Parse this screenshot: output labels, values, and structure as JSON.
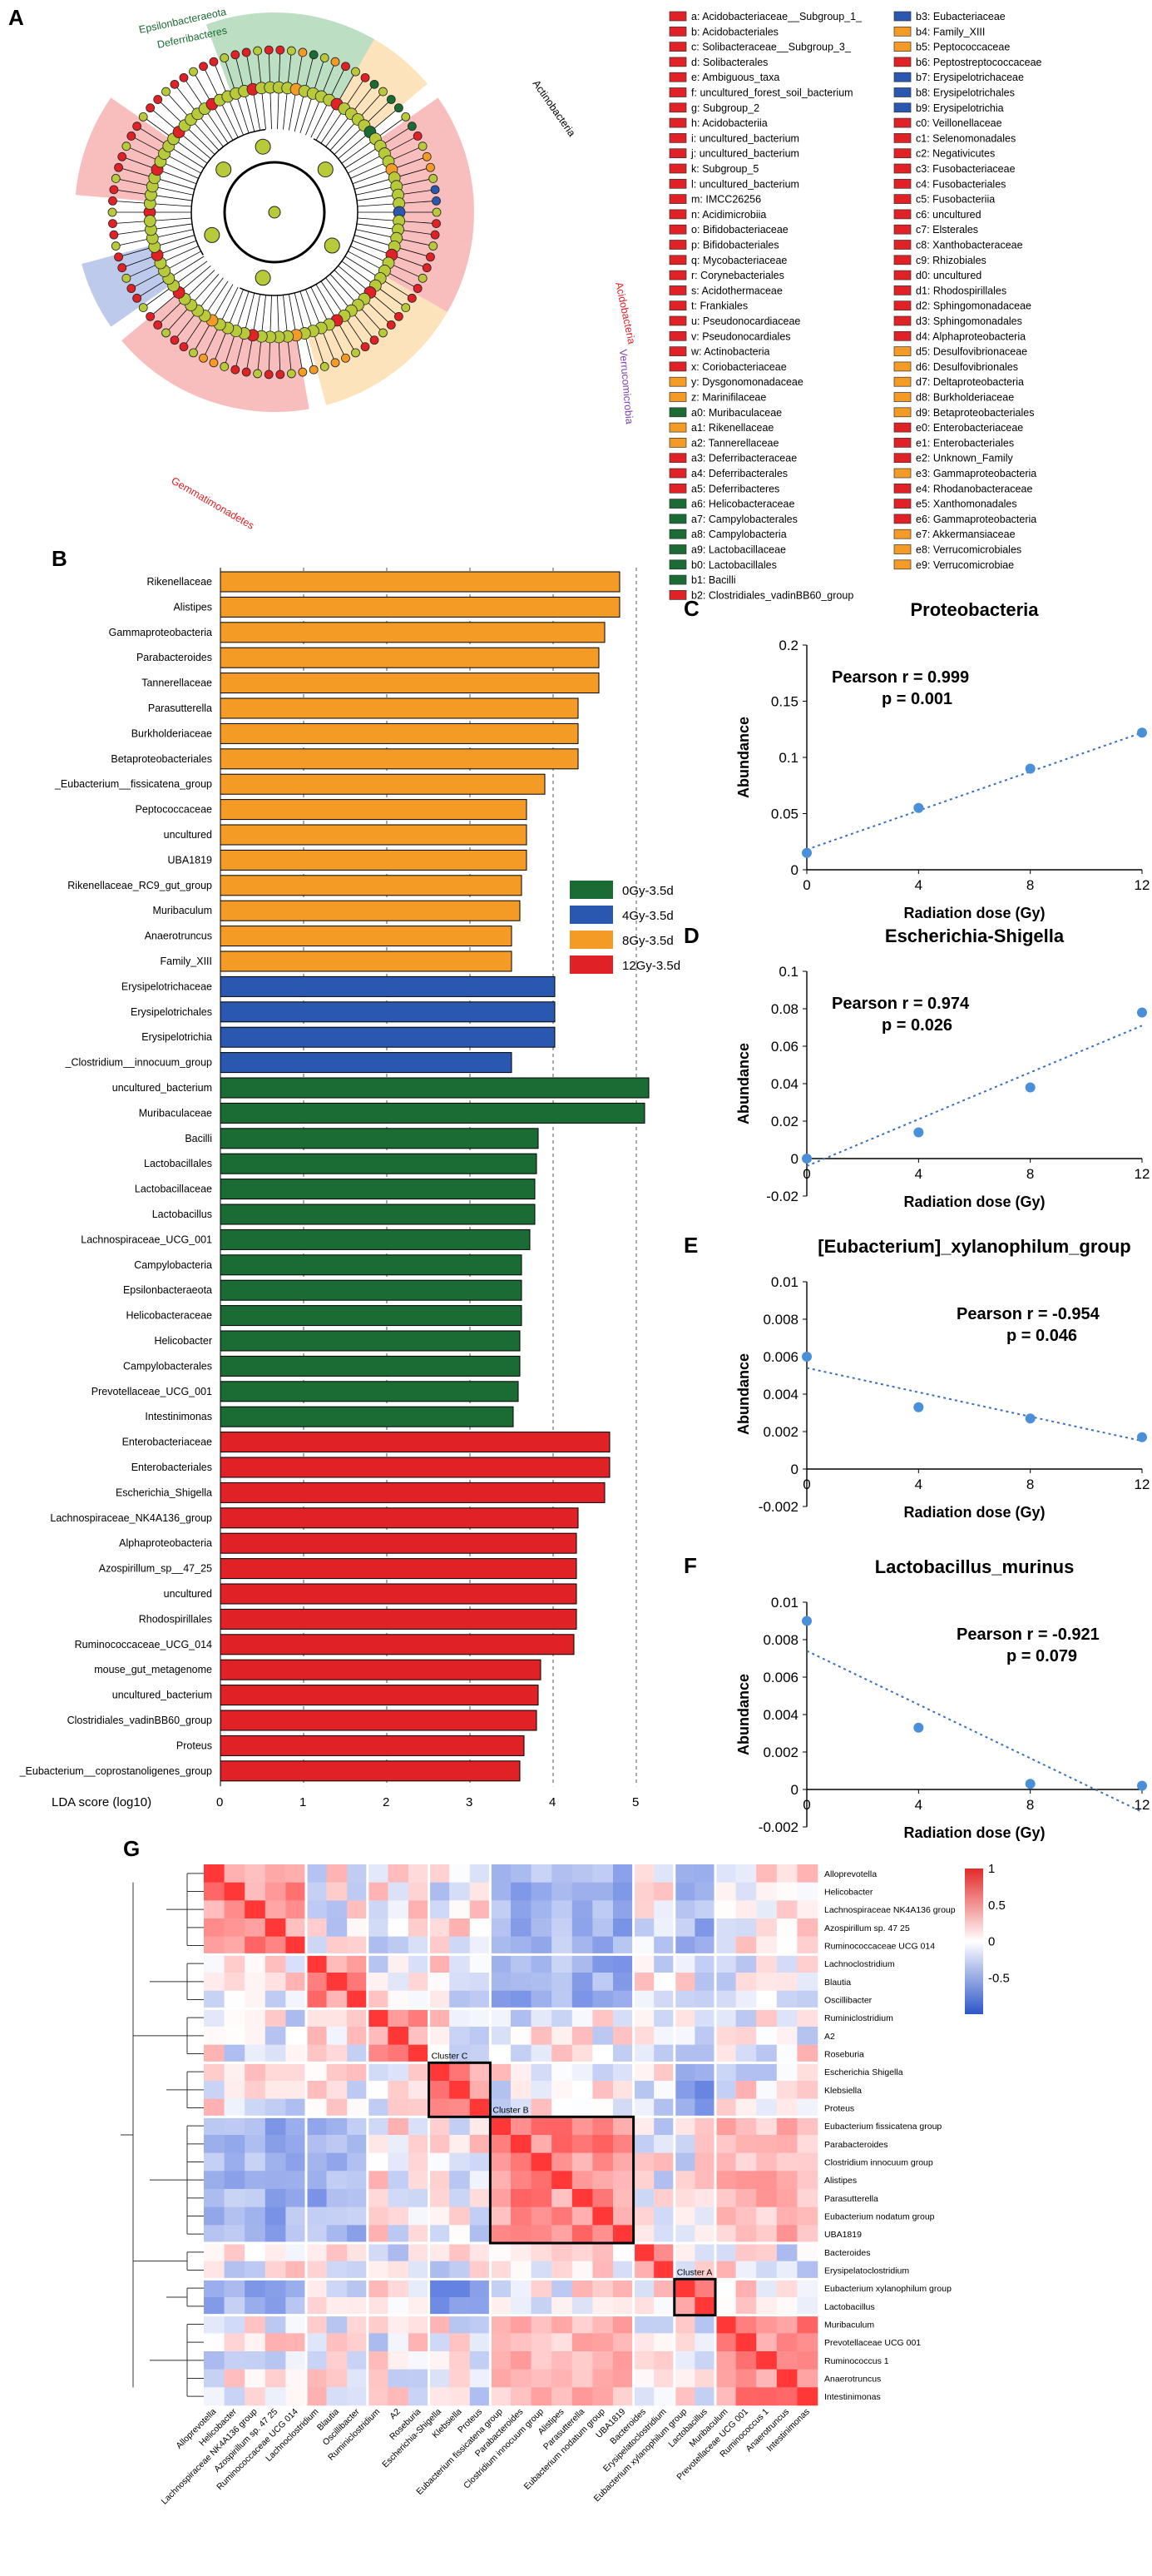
{
  "panels": {
    "a": "A",
    "b": "B",
    "c": "C",
    "d": "D",
    "e": "E",
    "f": "F",
    "g": "G"
  },
  "colors": {
    "0Gy": "#1b6b34",
    "4Gy": "#2a57b0",
    "8Gy": "#f49b25",
    "12Gy": "#e02126",
    "trend": "#3a6fbf",
    "point": "#4a90d9"
  },
  "cladogram": {
    "outer_labels": [
      {
        "text": "Actinobacteria",
        "color": "#000000"
      },
      {
        "text": "Epsilonbacteraeota",
        "color": "#1b6b34"
      },
      {
        "text": "Deferribacteres",
        "color": "#1b6b34"
      },
      {
        "text": "Gemmatimonadetes",
        "color": "#e02126"
      },
      {
        "text": "Acidobacteria",
        "color": "#e02126"
      },
      {
        "text": "Verrucomicrobia",
        "color": "#7b3fb0"
      }
    ],
    "legend": [
      {
        "code": "a",
        "name": "Acidobacteriaceae__Subgroup_1_",
        "group": "12Gy"
      },
      {
        "code": "b",
        "name": "Acidobacteriales",
        "group": "12Gy"
      },
      {
        "code": "c",
        "name": "Solibacteraceae__Subgroup_3_",
        "group": "12Gy"
      },
      {
        "code": "d",
        "name": "Solibacterales",
        "group": "12Gy"
      },
      {
        "code": "e",
        "name": "Ambiguous_taxa",
        "group": "12Gy"
      },
      {
        "code": "f",
        "name": "uncultured_forest_soil_bacterium",
        "group": "12Gy"
      },
      {
        "code": "g",
        "name": "Subgroup_2",
        "group": "12Gy"
      },
      {
        "code": "h",
        "name": "Acidobacteriia",
        "group": "12Gy"
      },
      {
        "code": "i",
        "name": "uncultured_bacterium",
        "group": "12Gy"
      },
      {
        "code": "j",
        "name": "uncultured_bacterium",
        "group": "12Gy"
      },
      {
        "code": "k",
        "name": "Subgroup_5",
        "group": "12Gy"
      },
      {
        "code": "l",
        "name": "uncultured_bacterium",
        "group": "12Gy"
      },
      {
        "code": "m",
        "name": "IMCC26256",
        "group": "12Gy"
      },
      {
        "code": "n",
        "name": "Acidimicrobiia",
        "group": "12Gy"
      },
      {
        "code": "o",
        "name": "Bifidobacteriaceae",
        "group": "12Gy"
      },
      {
        "code": "p",
        "name": "Bifidobacteriales",
        "group": "12Gy"
      },
      {
        "code": "q",
        "name": "Mycobacteriaceae",
        "group": "12Gy"
      },
      {
        "code": "r",
        "name": "Corynebacteriales",
        "group": "12Gy"
      },
      {
        "code": "s",
        "name": "Acidothermaceae",
        "group": "12Gy"
      },
      {
        "code": "t",
        "name": "Frankiales",
        "group": "12Gy"
      },
      {
        "code": "u",
        "name": "Pseudonocardiaceae",
        "group": "12Gy"
      },
      {
        "code": "v",
        "name": "Pseudonocardiales",
        "group": "12Gy"
      },
      {
        "code": "w",
        "name": "Actinobacteria",
        "group": "12Gy"
      },
      {
        "code": "x",
        "name": "Coriobacteriaceae",
        "group": "12Gy"
      },
      {
        "code": "y",
        "name": "Dysgonomonadaceae",
        "group": "8Gy"
      },
      {
        "code": "z",
        "name": "Marinifilaceae",
        "group": "8Gy"
      },
      {
        "code": "a0",
        "name": "Muribaculaceae",
        "group": "0Gy"
      },
      {
        "code": "a1",
        "name": "Rikenellaceae",
        "group": "8Gy"
      },
      {
        "code": "a2",
        "name": "Tannerellaceae",
        "group": "8Gy"
      },
      {
        "code": "a3",
        "name": "Deferribacteraceae",
        "group": "12Gy"
      },
      {
        "code": "a4",
        "name": "Deferribacterales",
        "group": "12Gy"
      },
      {
        "code": "a5",
        "name": "Deferribacteres",
        "group": "12Gy"
      },
      {
        "code": "a6",
        "name": "Helicobacteraceae",
        "group": "0Gy"
      },
      {
        "code": "a7",
        "name": "Campylobacterales",
        "group": "0Gy"
      },
      {
        "code": "a8",
        "name": "Campylobacteria",
        "group": "0Gy"
      },
      {
        "code": "a9",
        "name": "Lactobacillaceae",
        "group": "0Gy"
      },
      {
        "code": "b0",
        "name": "Lactobacillales",
        "group": "0Gy"
      },
      {
        "code": "b1",
        "name": "Bacilli",
        "group": "0Gy"
      },
      {
        "code": "b2",
        "name": "Clostridiales_vadinBB60_group",
        "group": "12Gy"
      },
      {
        "code": "b3",
        "name": "Eubacteriaceae",
        "group": "4Gy"
      },
      {
        "code": "b4",
        "name": "Family_XIII",
        "group": "8Gy"
      },
      {
        "code": "b5",
        "name": "Peptococcaceae",
        "group": "8Gy"
      },
      {
        "code": "b6",
        "name": "Peptostreptococcaceae",
        "group": "12Gy"
      },
      {
        "code": "b7",
        "name": "Erysipelotrichaceae",
        "group": "4Gy"
      },
      {
        "code": "b8",
        "name": "Erysipelotrichales",
        "group": "4Gy"
      },
      {
        "code": "b9",
        "name": "Erysipelotrichia",
        "group": "4Gy"
      },
      {
        "code": "c0",
        "name": "Veillonellaceae",
        "group": "12Gy"
      },
      {
        "code": "c1",
        "name": "Selenomonadales",
        "group": "12Gy"
      },
      {
        "code": "c2",
        "name": "Negativicutes",
        "group": "12Gy"
      },
      {
        "code": "c3",
        "name": "Fusobacteriaceae",
        "group": "12Gy"
      },
      {
        "code": "c4",
        "name": "Fusobacteriales",
        "group": "12Gy"
      },
      {
        "code": "c5",
        "name": "Fusobacteriia",
        "group": "12Gy"
      },
      {
        "code": "c6",
        "name": "uncultured",
        "group": "12Gy"
      },
      {
        "code": "c7",
        "name": "Elsterales",
        "group": "12Gy"
      },
      {
        "code": "c8",
        "name": "Xanthobacteraceae",
        "group": "12Gy"
      },
      {
        "code": "c9",
        "name": "Rhizobiales",
        "group": "12Gy"
      },
      {
        "code": "d0",
        "name": "uncultured",
        "group": "12Gy"
      },
      {
        "code": "d1",
        "name": "Rhodospirillales",
        "group": "12Gy"
      },
      {
        "code": "d2",
        "name": "Sphingomonadaceae",
        "group": "12Gy"
      },
      {
        "code": "d3",
        "name": "Sphingomonadales",
        "group": "12Gy"
      },
      {
        "code": "d4",
        "name": "Alphaproteobacteria",
        "group": "12Gy"
      },
      {
        "code": "d5",
        "name": "Desulfovibrionaceae",
        "group": "8Gy"
      },
      {
        "code": "d6",
        "name": "Desulfovibrionales",
        "group": "8Gy"
      },
      {
        "code": "d7",
        "name": "Deltaproteobacteria",
        "group": "8Gy"
      },
      {
        "code": "d8",
        "name": "Burkholderiaceae",
        "group": "8Gy"
      },
      {
        "code": "d9",
        "name": "Betaproteobacteriales",
        "group": "8Gy"
      },
      {
        "code": "e0",
        "name": "Enterobacteriaceae",
        "group": "12Gy"
      },
      {
        "code": "e1",
        "name": "Enterobacteriales",
        "group": "12Gy"
      },
      {
        "code": "e2",
        "name": "Unknown_Family",
        "group": "12Gy"
      },
      {
        "code": "e3",
        "name": "Gammaproteobacteria",
        "group": "8Gy"
      },
      {
        "code": "e4",
        "name": "Rhodanobacteraceae",
        "group": "12Gy"
      },
      {
        "code": "e5",
        "name": "Xanthomonadales",
        "group": "12Gy"
      },
      {
        "code": "e6",
        "name": "Gammaproteobacteria",
        "group": "12Gy"
      },
      {
        "code": "e7",
        "name": "Akkermansiaceae",
        "group": "8Gy"
      },
      {
        "code": "e8",
        "name": "Verrucomicrobiales",
        "group": "8Gy"
      },
      {
        "code": "e9",
        "name": "Verrucomicrobiae",
        "group": "8Gy"
      }
    ]
  },
  "lda": {
    "xlabel": "LDA score (log10)",
    "ticks": [
      0,
      1,
      2,
      3,
      4,
      5
    ],
    "legend": [
      {
        "label": "0Gy-3.5d",
        "group": "0Gy"
      },
      {
        "label": "4Gy-3.5d",
        "group": "4Gy"
      },
      {
        "label": "8Gy-3.5d",
        "group": "8Gy"
      },
      {
        "label": "12Gy-3.5d",
        "group": "12Gy"
      }
    ],
    "bars": [
      {
        "name": "Rikenellaceae",
        "value": 4.8,
        "group": "8Gy"
      },
      {
        "name": "Alistipes",
        "value": 4.8,
        "group": "8Gy"
      },
      {
        "name": "Gammaproteobacteria",
        "value": 4.62,
        "group": "8Gy"
      },
      {
        "name": "Parabacteroides",
        "value": 4.55,
        "group": "8Gy"
      },
      {
        "name": "Tannerellaceae",
        "value": 4.55,
        "group": "8Gy"
      },
      {
        "name": "Parasutterella",
        "value": 4.3,
        "group": "8Gy"
      },
      {
        "name": "Burkholderiaceae",
        "value": 4.3,
        "group": "8Gy"
      },
      {
        "name": "Betaproteobacteriales",
        "value": 4.3,
        "group": "8Gy"
      },
      {
        "name": "_Eubacterium__fissicatena_group",
        "value": 3.9,
        "group": "8Gy"
      },
      {
        "name": "Peptococcaceae",
        "value": 3.68,
        "group": "8Gy"
      },
      {
        "name": "uncultured",
        "value": 3.68,
        "group": "8Gy"
      },
      {
        "name": "UBA1819",
        "value": 3.68,
        "group": "8Gy"
      },
      {
        "name": "Rikenellaceae_RC9_gut_group",
        "value": 3.62,
        "group": "8Gy"
      },
      {
        "name": "Muribaculum",
        "value": 3.6,
        "group": "8Gy"
      },
      {
        "name": "Anaerotruncus",
        "value": 3.5,
        "group": "8Gy"
      },
      {
        "name": "Family_XIII",
        "value": 3.5,
        "group": "8Gy"
      },
      {
        "name": "Erysipelotrichaceae",
        "value": 4.02,
        "group": "4Gy"
      },
      {
        "name": "Erysipelotrichales",
        "value": 4.02,
        "group": "4Gy"
      },
      {
        "name": "Erysipelotrichia",
        "value": 4.02,
        "group": "4Gy"
      },
      {
        "name": "_Clostridium__innocuum_group",
        "value": 3.5,
        "group": "4Gy"
      },
      {
        "name": "uncultured_bacterium",
        "value": 5.15,
        "group": "0Gy"
      },
      {
        "name": "Muribaculaceae",
        "value": 5.1,
        "group": "0Gy"
      },
      {
        "name": "Bacilli",
        "value": 3.82,
        "group": "0Gy"
      },
      {
        "name": "Lactobacillales",
        "value": 3.8,
        "group": "0Gy"
      },
      {
        "name": "Lactobacillaceae",
        "value": 3.78,
        "group": "0Gy"
      },
      {
        "name": "Lactobacillus",
        "value": 3.78,
        "group": "0Gy"
      },
      {
        "name": "Lachnospiraceae_UCG_001",
        "value": 3.72,
        "group": "0Gy"
      },
      {
        "name": "Campylobacteria",
        "value": 3.62,
        "group": "0Gy"
      },
      {
        "name": "Epsilonbacteraeota",
        "value": 3.62,
        "group": "0Gy"
      },
      {
        "name": "Helicobacteraceae",
        "value": 3.62,
        "group": "0Gy"
      },
      {
        "name": "Helicobacter",
        "value": 3.6,
        "group": "0Gy"
      },
      {
        "name": "Campylobacterales",
        "value": 3.6,
        "group": "0Gy"
      },
      {
        "name": "Prevotellaceae_UCG_001",
        "value": 3.58,
        "group": "0Gy"
      },
      {
        "name": "Intestinimonas",
        "value": 3.52,
        "group": "0Gy"
      },
      {
        "name": "Enterobacteriaceae",
        "value": 4.68,
        "group": "12Gy"
      },
      {
        "name": "Enterobacteriales",
        "value": 4.68,
        "group": "12Gy"
      },
      {
        "name": "Escherichia_Shigella",
        "value": 4.62,
        "group": "12Gy"
      },
      {
        "name": "Lachnospiraceae_NK4A136_group",
        "value": 4.3,
        "group": "12Gy"
      },
      {
        "name": "Alphaproteobacteria",
        "value": 4.28,
        "group": "12Gy"
      },
      {
        "name": "Azospirillum_sp__47_25",
        "value": 4.28,
        "group": "12Gy"
      },
      {
        "name": "uncultured",
        "value": 4.28,
        "group": "12Gy"
      },
      {
        "name": "Rhodospirillales",
        "value": 4.28,
        "group": "12Gy"
      },
      {
        "name": "Ruminococcaceae_UCG_014",
        "value": 4.25,
        "group": "12Gy"
      },
      {
        "name": "mouse_gut_metagenome",
        "value": 3.85,
        "group": "12Gy"
      },
      {
        "name": "uncultured_bacterium",
        "value": 3.82,
        "group": "12Gy"
      },
      {
        "name": "Clostridiales_vadinBB60_group",
        "value": 3.8,
        "group": "12Gy"
      },
      {
        "name": "Proteus",
        "value": 3.65,
        "group": "12Gy"
      },
      {
        "name": "_Eubacterium__coprostanoligenes_group",
        "value": 3.6,
        "group": "12Gy"
      }
    ]
  },
  "scatter": [
    {
      "title": "Proteobacteria",
      "xlabel": "Radiation dose (Gy)",
      "ylabel": "Abundance",
      "pearson": "Pearson r = 0.999",
      "p": "p = 0.001",
      "xticks": [
        "0",
        "4",
        "8",
        "12"
      ],
      "yticks": [
        "0",
        "0.05",
        "0.1",
        "0.15",
        "0.2"
      ],
      "ylim": [
        0,
        0.2
      ],
      "x": [
        0,
        4,
        8,
        12
      ],
      "y": [
        0.015,
        0.055,
        0.09,
        0.122
      ],
      "trend": [
        0.018,
        0.122
      ]
    },
    {
      "title": "Escherichia-Shigella",
      "xlabel": "Radiation dose (Gy)",
      "ylabel": "Abundance",
      "pearson": "Pearson r = 0.974",
      "p": "p = 0.026",
      "xticks": [
        "0",
        "4",
        "8",
        "12"
      ],
      "yticks": [
        "-0.02",
        "0",
        "0.02",
        "0.04",
        "0.06",
        "0.08",
        "0.1"
      ],
      "ylim": [
        -0.02,
        0.1
      ],
      "x": [
        0,
        4,
        8,
        12
      ],
      "y": [
        0.0,
        0.014,
        0.038,
        0.078
      ],
      "trend": [
        -0.004,
        0.071
      ]
    },
    {
      "title": "[Eubacterium]_xylanophilum_group",
      "xlabel": "Radiation dose (Gy)",
      "ylabel": "Abundance",
      "pearson": "Pearson r = -0.954",
      "p": "p = 0.046",
      "xticks": [
        "0",
        "4",
        "8",
        "12"
      ],
      "yticks": [
        "-0.002",
        "0",
        "0.002",
        "0.004",
        "0.006",
        "0.008",
        "0.01"
      ],
      "ylim": [
        -0.002,
        0.01
      ],
      "x": [
        0,
        4,
        8,
        12
      ],
      "y": [
        0.006,
        0.0033,
        0.0027,
        0.0017
      ],
      "trend": [
        0.0054,
        0.0015
      ]
    },
    {
      "title": "Lactobacillus_murinus",
      "xlabel": "Radiation dose (Gy)",
      "ylabel": "Abundance",
      "pearson": "Pearson r = -0.921",
      "p": "p = 0.079",
      "xticks": [
        "0",
        "4",
        "8",
        "12"
      ],
      "yticks": [
        "-0.002",
        "0",
        "0.002",
        "0.004",
        "0.006",
        "0.008",
        "0.01"
      ],
      "ylim": [
        -0.002,
        0.01
      ],
      "x": [
        0,
        4,
        8,
        12
      ],
      "y": [
        0.009,
        0.0033,
        0.0003,
        0.0002
      ],
      "trend": [
        0.0074,
        -0.0012
      ]
    }
  ],
  "heatmap": {
    "rows": [
      "Alloprevotella",
      "Helicobacter",
      "Lachnospiraceae NK4A136 group",
      "Azospirillum sp. 47 25",
      "Ruminococcaceae UCG 014",
      "Lachnoclostridium",
      "Blautia",
      "Oscillibacter",
      "Ruminiclostridium",
      "A2",
      "Roseburia",
      "Escherichia Shigella",
      "Klebsiella",
      "Proteus",
      "Eubacterium fissicatena group",
      "Parabacteroides",
      "Clostridium innocuum group",
      "Alistipes",
      "Parasutterella",
      "Eubacterium nodatum group",
      "UBA1819",
      "Bacteroides",
      "Erysipelatoclostridium",
      "Eubacterium xylanophilum group",
      "Lactobacillus",
      "Muribaculum",
      "Prevotellaceae UCG 001",
      "Ruminococcus 1",
      "Anaerotruncus",
      "Intestinimonas"
    ],
    "cols": [
      "Alloprevotella",
      "Helicobacter",
      "Lachnospiraceae NK4A136 group",
      "Azospirillum sp. 47 25",
      "Ruminococcaceae UCG 014",
      "Lachnoclostridium",
      "Blautia",
      "Oscillibacter",
      "Ruminiclostridium",
      "A2",
      "Roseburia",
      "Escherichia-Shigella",
      "Klebsiella",
      "Proteus",
      "Eubacterium fissicatena group",
      "Parabacteroides",
      "Clostridium innocuum group",
      "Alistipes",
      "Parasutterella",
      "Eubacterium nodatum group",
      "UBA1819",
      "Bacteroides",
      "Erysipelatoclostridium",
      "Eubacterium xylanophilum group",
      "Lactobacillus",
      "Muribaculum",
      "Prevotellaceae UCG 001",
      "Ruminococcus 1",
      "Anaerotruncus",
      "Intestinimonas"
    ],
    "row_groups": [
      5,
      3,
      3,
      3,
      7,
      2,
      2,
      5
    ],
    "clusters": [
      {
        "label": "Cluster C"
      },
      {
        "label": "Cluster B"
      },
      {
        "label": "Cluster A"
      }
    ],
    "colorbar_ticks": [
      "1",
      "0.5",
      "0",
      "-0.5"
    ]
  }
}
